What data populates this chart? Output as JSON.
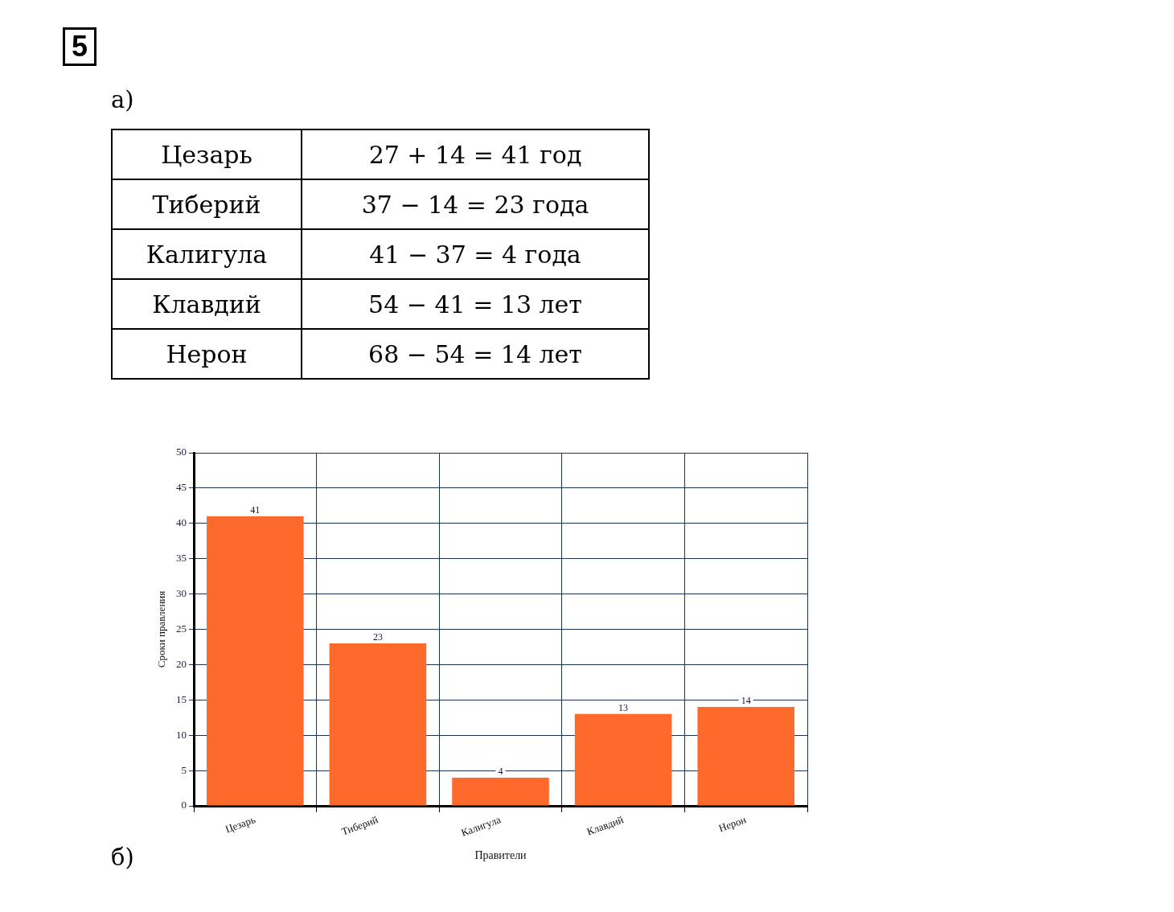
{
  "chart_data": {
    "type": "bar",
    "categories": [
      "Цезарь",
      "Тиберий",
      "Калигула",
      "Клавдий",
      "Нерон"
    ],
    "values": [
      41,
      23,
      4,
      13,
      14
    ],
    "color": "#fe6a2c",
    "xlabel": "Правители",
    "ylabel": "Сроки правления",
    "ylim": [
      0,
      50
    ],
    "yticks": [
      0,
      5,
      10,
      15,
      20,
      25,
      30,
      35,
      40,
      45,
      50
    ],
    "grid": true,
    "data_labels": true,
    "annotations": [
      "5",
      "а)",
      "Цезарь",
      "27 + 14 = 41 год",
      "Тиберий",
      "37 − 14 = 23 года",
      "Калигула",
      "41 − 37 = 4 года",
      "Клавдий",
      "54 − 41 = 13 лет",
      "Нерон",
      "68 − 54 = 14 лет",
      "б)"
    ]
  }
}
